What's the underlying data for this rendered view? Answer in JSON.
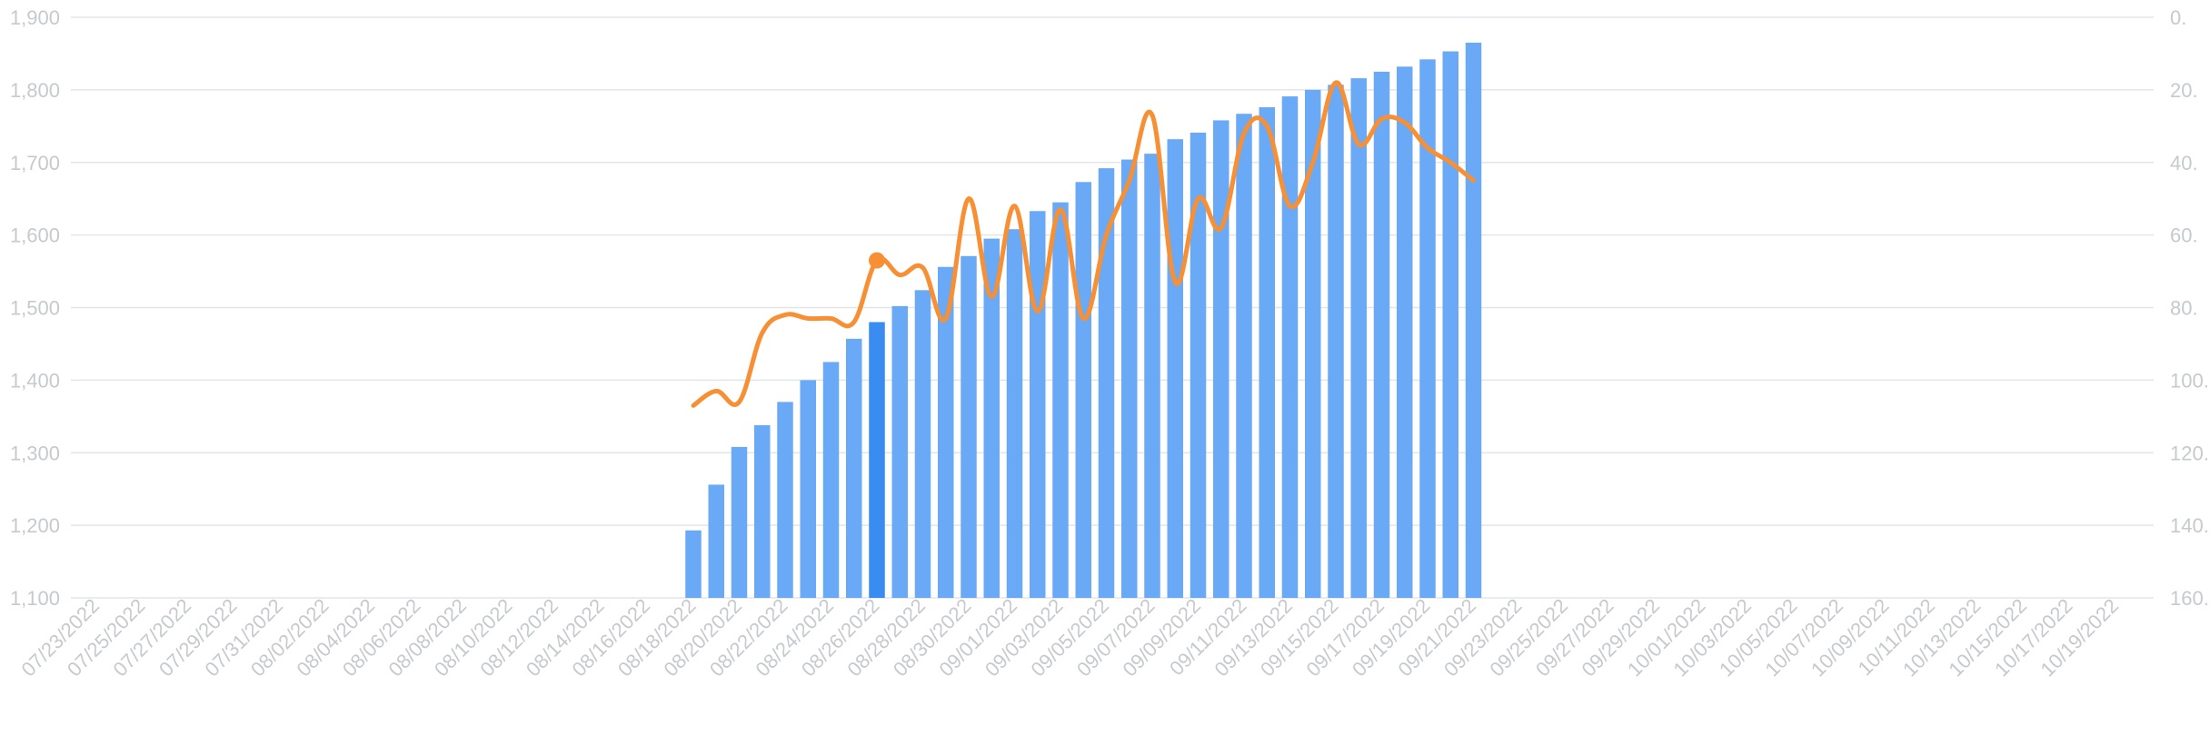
{
  "chart_data": {
    "type": "bar",
    "title": "",
    "xlabel": "",
    "ylabel": "",
    "grid": true,
    "legend": "none",
    "colors": {
      "bar": "#6aa9f5",
      "bar_highlight": "#3a8cf1",
      "line": "#f79034"
    },
    "highlight_date": "08/26/2022",
    "y_left": {
      "min": 1100,
      "max": 1900,
      "ticks": [
        "1,100",
        "1,200",
        "1,300",
        "1,400",
        "1,500",
        "1,600",
        "1,700",
        "1,800",
        "1,900"
      ]
    },
    "y_right": {
      "min": 0,
      "max": 160,
      "ticks": [
        "0.",
        "20.",
        "40.",
        "60.",
        "80.",
        "100.",
        "120.",
        "140.",
        "160."
      ]
    },
    "x_tick_labels": [
      "07/23/2022",
      "07/25/2022",
      "07/27/2022",
      "07/29/2022",
      "07/31/2022",
      "08/02/2022",
      "08/04/2022",
      "08/06/2022",
      "08/08/2022",
      "08/10/2022",
      "08/12/2022",
      "08/14/2022",
      "08/16/2022",
      "08/18/2022",
      "08/20/2022",
      "08/22/2022",
      "08/24/2022",
      "08/26/2022",
      "08/28/2022",
      "08/30/2022",
      "09/01/2022",
      "09/03/2022",
      "09/05/2022",
      "09/07/2022",
      "09/09/2022",
      "09/11/2022",
      "09/13/2022",
      "09/15/2022",
      "09/17/2022",
      "09/19/2022",
      "09/21/2022",
      "09/23/2022",
      "09/25/2022",
      "09/27/2022",
      "09/29/2022",
      "10/01/2022",
      "10/03/2022",
      "10/05/2022",
      "10/07/2022",
      "10/09/2022",
      "10/11/2022",
      "10/13/2022",
      "10/15/2022",
      "10/17/2022",
      "10/19/2022"
    ],
    "series": [
      {
        "axis": "left",
        "kind": "bar",
        "x": [
          "08/18/2022",
          "08/19/2022",
          "08/20/2022",
          "08/21/2022",
          "08/22/2022",
          "08/23/2022",
          "08/24/2022",
          "08/25/2022",
          "08/26/2022",
          "08/27/2022",
          "08/28/2022",
          "08/29/2022",
          "08/30/2022",
          "08/31/2022",
          "09/01/2022",
          "09/02/2022",
          "09/03/2022",
          "09/04/2022",
          "09/05/2022",
          "09/06/2022",
          "09/07/2022",
          "09/08/2022",
          "09/09/2022",
          "09/10/2022",
          "09/11/2022",
          "09/12/2022",
          "09/13/2022",
          "09/14/2022",
          "09/15/2022",
          "09/16/2022",
          "09/17/2022",
          "09/18/2022",
          "09/19/2022",
          "09/20/2022",
          "09/21/2022"
        ],
        "values": [
          1193,
          1256,
          1308,
          1338,
          1370,
          1400,
          1425,
          1457,
          1480,
          1502,
          1524,
          1556,
          1571,
          1595,
          1608,
          1633,
          1645,
          1673,
          1692,
          1704,
          1712,
          1732,
          1741,
          1758,
          1767,
          1776,
          1791,
          1800,
          1807,
          1816,
          1825,
          1832,
          1842,
          1853,
          1865
        ]
      },
      {
        "axis": "right",
        "kind": "line",
        "x": [
          "08/18/2022",
          "08/19/2022",
          "08/20/2022",
          "08/21/2022",
          "08/22/2022",
          "08/23/2022",
          "08/24/2022",
          "08/25/2022",
          "08/26/2022",
          "08/27/2022",
          "08/28/2022",
          "08/29/2022",
          "08/30/2022",
          "08/31/2022",
          "09/01/2022",
          "09/02/2022",
          "09/03/2022",
          "09/04/2022",
          "09/05/2022",
          "09/06/2022",
          "09/07/2022",
          "09/08/2022",
          "09/09/2022",
          "09/10/2022",
          "09/11/2022",
          "09/12/2022",
          "09/13/2022",
          "09/14/2022",
          "09/15/2022",
          "09/16/2022",
          "09/17/2022",
          "09/18/2022",
          "09/19/2022",
          "09/20/2022",
          "09/21/2022"
        ],
        "values": [
          53,
          57,
          54,
          73,
          78,
          77,
          77,
          76,
          93,
          89,
          91,
          77,
          110,
          83,
          108,
          79,
          107,
          77,
          100,
          115,
          133,
          87,
          110,
          102,
          128,
          130,
          108,
          120,
          142,
          125,
          132,
          131,
          124,
          120,
          115
        ]
      }
    ]
  }
}
